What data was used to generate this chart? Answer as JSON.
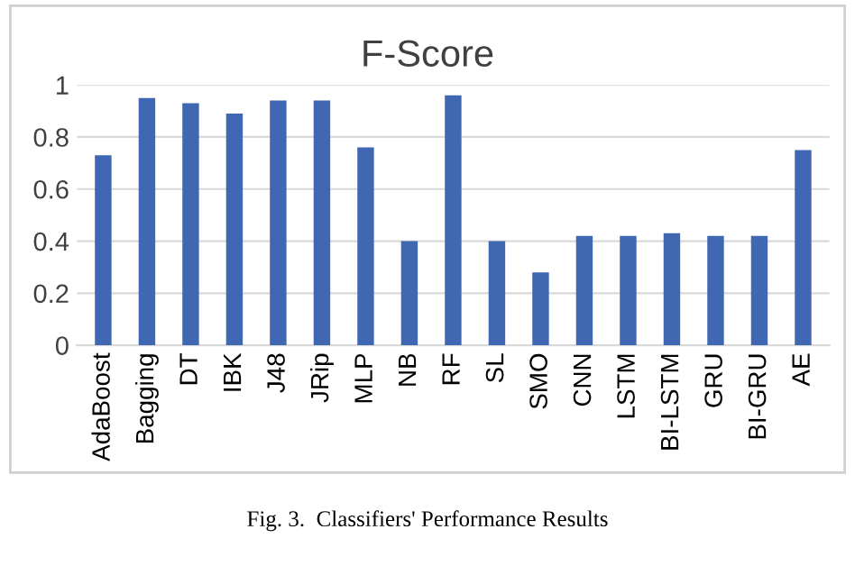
{
  "chart_data": {
    "type": "bar",
    "title": "F-Score",
    "categories": [
      "AdaBoost",
      "Bagging",
      "DT",
      "IBK",
      "J48",
      "JRip",
      "MLP",
      "NB",
      "RF",
      "SL",
      "SMO",
      "CNN",
      "LSTM",
      "BI-LSTM",
      "GRU",
      "BI-GRU",
      "AE"
    ],
    "values": [
      0.73,
      0.95,
      0.93,
      0.89,
      0.94,
      0.94,
      0.76,
      0.4,
      0.96,
      0.4,
      0.28,
      0.42,
      0.42,
      0.43,
      0.42,
      0.42,
      0.75
    ],
    "color": "#4068b2",
    "ylim": [
      0,
      1
    ],
    "yticks": [
      0,
      0.2,
      0.4,
      0.6,
      0.8,
      1
    ],
    "grid": "y",
    "annotations": [
      "Fig. 3.  Classifiers' Performance Results"
    ]
  }
}
